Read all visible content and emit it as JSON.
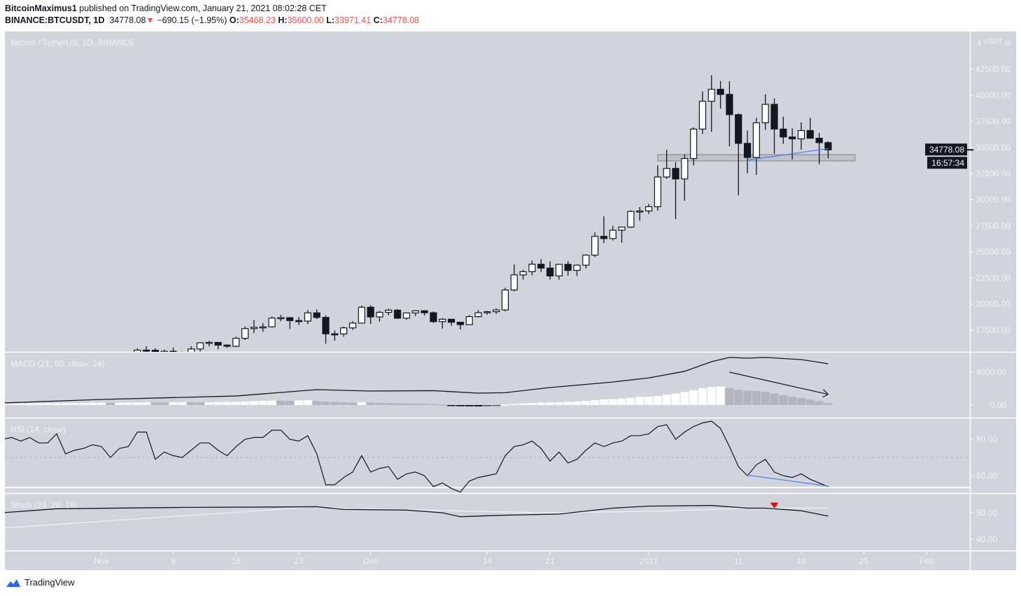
{
  "header": {
    "author": "BitcoinMaximus1",
    "published": "published on TradingView.com, January 21, 2021 08:02:28 CET",
    "symbol": "BINANCE:BTCUSDT, 1D",
    "last": "34778.08",
    "change": "−690.15 (−1.95%)",
    "o_label": "O:",
    "o": "35468.23",
    "h_label": "H:",
    "h": "35600.00",
    "l_label": "L:",
    "l": "33971.41",
    "c_label": "C:",
    "c": "34778.08",
    "down_icon": "triangle-down-icon"
  },
  "footer": {
    "brand": "TradingView"
  },
  "colors": {
    "pane_bg": "#d1d4dc",
    "up": "#ffffff",
    "down": "#131722",
    "accent_line": "#4a86e8",
    "signal_marker": "#ff0000",
    "loss_text": "#ef5350"
  },
  "chart_data": {
    "type": "candlestick",
    "title": "Bitcoin / TetherUS, 1D, BINANCE",
    "currency": "USDT",
    "axis_top": {
      "left": "4",
      "unit": "USDT",
      "right": "0"
    },
    "price_ticks": [
      "42500.00",
      "40000.00",
      "37500.00",
      "35000.00",
      "32500.00",
      "30000.00",
      "27500.00",
      "25000.00",
      "22500.00",
      "20000.00",
      "17500.00"
    ],
    "last_price_label": "34778.08",
    "countdown": "16:57:34",
    "time_labels": [
      {
        "label": "Nov",
        "date": "2020-11-01"
      },
      {
        "label": "9",
        "date": "2020-11-09"
      },
      {
        "label": "16",
        "date": "2020-11-16"
      },
      {
        "label": "23",
        "date": "2020-11-23"
      },
      {
        "label": "Dec",
        "date": "2020-12-01"
      },
      {
        "label": "14",
        "date": "2020-12-14"
      },
      {
        "label": "21",
        "date": "2020-12-21"
      },
      {
        "label": "2021",
        "date": "2021-01-01"
      },
      {
        "label": "11",
        "date": "2021-01-11"
      },
      {
        "label": "18",
        "date": "2021-01-18"
      },
      {
        "label": "25",
        "date": "2021-01-25"
      },
      {
        "label": "Feb",
        "date": "2021-02-01"
      }
    ],
    "ohlc_columns": [
      "date",
      "open",
      "high",
      "low",
      "close"
    ],
    "candles": [
      [
        "2020-11-05",
        14130,
        15750,
        14090,
        15590
      ],
      [
        "2020-11-06",
        15590,
        15960,
        15190,
        15580
      ],
      [
        "2020-11-07",
        15580,
        15770,
        14330,
        14830
      ],
      [
        "2020-11-08",
        14830,
        15650,
        14700,
        15480
      ],
      [
        "2020-11-09",
        15480,
        15840,
        14800,
        15330
      ],
      [
        "2020-11-10",
        15330,
        15460,
        14850,
        15310
      ],
      [
        "2020-11-11",
        15310,
        15960,
        15280,
        15700
      ],
      [
        "2020-11-12",
        15700,
        16340,
        15440,
        16290
      ],
      [
        "2020-11-13",
        16290,
        16480,
        15950,
        16330
      ],
      [
        "2020-11-14",
        16330,
        16330,
        15680,
        16070
      ],
      [
        "2020-11-15",
        16070,
        16150,
        15800,
        15960
      ],
      [
        "2020-11-16",
        15960,
        16880,
        15870,
        16720
      ],
      [
        "2020-11-17",
        16720,
        17860,
        16560,
        17650
      ],
      [
        "2020-11-18",
        17650,
        18480,
        17210,
        17780
      ],
      [
        "2020-11-19",
        17780,
        18180,
        17340,
        17820
      ],
      [
        "2020-11-20",
        17820,
        18820,
        17760,
        18660
      ],
      [
        "2020-11-21",
        18660,
        18960,
        18360,
        18700
      ],
      [
        "2020-11-22",
        18700,
        18750,
        17610,
        18420
      ],
      [
        "2020-11-23",
        18420,
        18770,
        18000,
        18370
      ],
      [
        "2020-11-24",
        18370,
        19420,
        18090,
        19160
      ],
      [
        "2020-11-25",
        19160,
        19480,
        18570,
        18720
      ],
      [
        "2020-11-26",
        18720,
        18915,
        16200,
        17150
      ],
      [
        "2020-11-27",
        17150,
        17460,
        16500,
        17140
      ],
      [
        "2020-11-28",
        17140,
        17850,
        16880,
        17720
      ],
      [
        "2020-11-29",
        17720,
        18350,
        17520,
        18180
      ],
      [
        "2020-11-30",
        18180,
        19860,
        18180,
        19700
      ],
      [
        "2020-12-01",
        19700,
        19890,
        18100,
        18770
      ],
      [
        "2020-12-02",
        18770,
        19340,
        18330,
        19210
      ],
      [
        "2020-12-03",
        19210,
        19570,
        18930,
        19420
      ],
      [
        "2020-12-04",
        19420,
        19530,
        18570,
        18650
      ],
      [
        "2020-12-05",
        18650,
        19180,
        18500,
        19150
      ],
      [
        "2020-12-06",
        19150,
        19420,
        18860,
        19360
      ],
      [
        "2020-12-07",
        19360,
        19420,
        18900,
        19170
      ],
      [
        "2020-12-08",
        19170,
        19300,
        18200,
        18320
      ],
      [
        "2020-12-09",
        18320,
        18640,
        17650,
        18550
      ],
      [
        "2020-12-10",
        18550,
        18560,
        17910,
        18260
      ],
      [
        "2020-12-11",
        18260,
        18270,
        17570,
        18030
      ],
      [
        "2020-12-12",
        18030,
        18950,
        18020,
        18800
      ],
      [
        "2020-12-13",
        18800,
        19410,
        18720,
        19170
      ],
      [
        "2020-12-14",
        19170,
        19350,
        19000,
        19270
      ],
      [
        "2020-12-15",
        19270,
        19570,
        19050,
        19440
      ],
      [
        "2020-12-16",
        19440,
        21560,
        19300,
        21350
      ],
      [
        "2020-12-17",
        21350,
        23800,
        21230,
        22800
      ],
      [
        "2020-12-18",
        22800,
        23280,
        22350,
        23110
      ],
      [
        "2020-12-19",
        23110,
        24170,
        22750,
        23820
      ],
      [
        "2020-12-20",
        23820,
        24300,
        23060,
        23450
      ],
      [
        "2020-12-21",
        23450,
        24100,
        22350,
        22700
      ],
      [
        "2020-12-22",
        22700,
        23840,
        22350,
        23810
      ],
      [
        "2020-12-23",
        23810,
        24120,
        22720,
        23230
      ],
      [
        "2020-12-24",
        23230,
        23780,
        22700,
        23730
      ],
      [
        "2020-12-25",
        23730,
        24780,
        23430,
        24690
      ],
      [
        "2020-12-26",
        24690,
        26870,
        24500,
        26490
      ],
      [
        "2020-12-27",
        26490,
        28420,
        25860,
        26280
      ],
      [
        "2020-12-28",
        26280,
        27500,
        26100,
        27080
      ],
      [
        "2020-12-29",
        27080,
        27400,
        25880,
        27380
      ],
      [
        "2020-12-30",
        27380,
        28990,
        27320,
        28880
      ],
      [
        "2020-12-31",
        28880,
        29300,
        28000,
        28920
      ],
      [
        "2021-01-01",
        28920,
        29600,
        28620,
        29330
      ],
      [
        "2021-01-02",
        29330,
        33300,
        28950,
        32180
      ],
      [
        "2021-01-03",
        32180,
        34780,
        32000,
        33000
      ],
      [
        "2021-01-04",
        33000,
        33600,
        28130,
        31990
      ],
      [
        "2021-01-05",
        31990,
        34360,
        29900,
        33950
      ],
      [
        "2021-01-06",
        33950,
        36940,
        33290,
        36770
      ],
      [
        "2021-01-07",
        36770,
        40370,
        36300,
        39430
      ],
      [
        "2021-01-08",
        39430,
        41950,
        36500,
        40580
      ],
      [
        "2021-01-09",
        40580,
        41380,
        38720,
        40090
      ],
      [
        "2021-01-10",
        40090,
        41350,
        35110,
        38150
      ],
      [
        "2021-01-11",
        38150,
        38260,
        30420,
        35400
      ],
      [
        "2021-01-12",
        35400,
        36630,
        32530,
        34050
      ],
      [
        "2021-01-13",
        34050,
        37850,
        32380,
        37370
      ],
      [
        "2021-01-14",
        37370,
        40100,
        36700,
        39140
      ],
      [
        "2021-01-15",
        39140,
        39700,
        34410,
        36770
      ],
      [
        "2021-01-16",
        36770,
        37950,
        35360,
        36010
      ],
      [
        "2021-01-17",
        36010,
        36850,
        33850,
        35830
      ],
      [
        "2021-01-18",
        35830,
        37400,
        34800,
        36630
      ],
      [
        "2021-01-19",
        36630,
        37850,
        35850,
        35890
      ],
      [
        "2021-01-20",
        35890,
        36400,
        33400,
        35470
      ],
      [
        "2021-01-21",
        35468.23,
        35600,
        33971.41,
        34778.08
      ]
    ],
    "annotations": {
      "support_zone": {
        "from": "2021-01-02",
        "to": "2021-01-24",
        "top": 34320,
        "bottom": 33720
      },
      "price_trendline": [
        [
          "2021-01-12",
          33800
        ],
        [
          "2021-01-21",
          34900
        ]
      ],
      "macd_arrow": [
        [
          "2021-01-10",
          4000
        ],
        [
          "2021-01-21",
          1300
        ]
      ],
      "rsi_trendline": [
        [
          "2021-01-12",
          60.3
        ],
        [
          "2021-01-21",
          54.3
        ]
      ],
      "stoch_signal": {
        "date": "2021-01-15",
        "value": 91
      }
    },
    "macd": {
      "title": "MACD (21, 50, close, 24)",
      "ticks": [
        "4000.00",
        "0.00"
      ],
      "line": [
        [
          "2020-10-21",
          250
        ],
        [
          "2020-11-01",
          680
        ],
        [
          "2020-11-16",
          1100
        ],
        [
          "2020-11-25",
          1870
        ],
        [
          "2020-12-01",
          1700
        ],
        [
          "2020-12-08",
          1750
        ],
        [
          "2020-12-13",
          1450
        ],
        [
          "2020-12-16",
          1500
        ],
        [
          "2020-12-21",
          2130
        ],
        [
          "2020-12-28",
          2800
        ],
        [
          "2021-01-01",
          3300
        ],
        [
          "2021-01-05",
          4100
        ],
        [
          "2021-01-08",
          5280
        ],
        [
          "2021-01-10",
          5790
        ],
        [
          "2021-01-12",
          5700
        ],
        [
          "2021-01-14",
          5790
        ],
        [
          "2021-01-18",
          5530
        ],
        [
          "2021-01-21",
          5020
        ]
      ]
    },
    "rsi": {
      "title": "RSI (14, close)",
      "ticks": [
        "80.00",
        "60.00"
      ],
      "midline": 70,
      "lower_band": 53.5
    },
    "stoch": {
      "title": "Stoch (24, 28, 16)",
      "ticks": [
        "80.00",
        "40.00"
      ],
      "k": [
        [
          "2020-10-21",
          80
        ],
        [
          "2020-10-27",
          86
        ],
        [
          "2020-11-10",
          88
        ],
        [
          "2020-11-25",
          89
        ],
        [
          "2020-11-28",
          85
        ],
        [
          "2020-12-05",
          84
        ],
        [
          "2020-12-09",
          80
        ],
        [
          "2020-12-11",
          74
        ],
        [
          "2020-12-15",
          76
        ],
        [
          "2020-12-22",
          78
        ],
        [
          "2020-12-28",
          87
        ],
        [
          "2021-01-01",
          90
        ],
        [
          "2021-01-08",
          91
        ],
        [
          "2021-01-12",
          87
        ],
        [
          "2021-01-14",
          87
        ],
        [
          "2021-01-18",
          83
        ],
        [
          "2021-01-21",
          75
        ]
      ],
      "d": [
        [
          "2020-10-21",
          57
        ],
        [
          "2020-11-24",
          88
        ],
        [
          "2020-12-20",
          80
        ],
        [
          "2021-01-01",
          82
        ],
        [
          "2021-01-08",
          85
        ],
        [
          "2021-01-12",
          87
        ],
        [
          "2021-01-21",
          87
        ]
      ]
    },
    "daily_columns": [
      "date",
      "rsi",
      "macd_histogram"
    ],
    "daily": [
      [
        "2020-10-21",
        80,
        150
      ],
      [
        "2020-10-22",
        81,
        170
      ],
      [
        "2020-10-23",
        79,
        190
      ],
      [
        "2020-10-24",
        81,
        200
      ],
      [
        "2020-10-25",
        78,
        210
      ],
      [
        "2020-10-26",
        78,
        220
      ],
      [
        "2020-10-27",
        83,
        230
      ],
      [
        "2020-10-28",
        72,
        240
      ],
      [
        "2020-10-29",
        74,
        250
      ],
      [
        "2020-10-30",
        75,
        260
      ],
      [
        "2020-10-31",
        77,
        270
      ],
      [
        "2020-11-01",
        76,
        280
      ],
      [
        "2020-11-02",
        70,
        270
      ],
      [
        "2020-11-03",
        75,
        280
      ],
      [
        "2020-11-04",
        76,
        300
      ],
      [
        "2020-11-05",
        84,
        320
      ],
      [
        "2020-11-06",
        84,
        340
      ],
      [
        "2020-11-07",
        69,
        330
      ],
      [
        "2020-11-08",
        73,
        310
      ],
      [
        "2020-11-09",
        71,
        330
      ],
      [
        "2020-11-10",
        70,
        350
      ],
      [
        "2020-11-11",
        74,
        340
      ],
      [
        "2020-11-12",
        78,
        320
      ],
      [
        "2020-11-13",
        78,
        340
      ],
      [
        "2020-11-14",
        74,
        360
      ],
      [
        "2020-11-15",
        71,
        380
      ],
      [
        "2020-11-16",
        76,
        400
      ],
      [
        "2020-11-17",
        80,
        430
      ],
      [
        "2020-11-18",
        81,
        460
      ],
      [
        "2020-11-19",
        81,
        500
      ],
      [
        "2020-11-20",
        85,
        560
      ],
      [
        "2020-11-21",
        85,
        520
      ],
      [
        "2020-11-22",
        80,
        500
      ],
      [
        "2020-11-23",
        79,
        560
      ],
      [
        "2020-11-24",
        82,
        600
      ],
      [
        "2020-11-25",
        72,
        470
      ],
      [
        "2020-11-26",
        55,
        420
      ],
      [
        "2020-11-27",
        55,
        380
      ],
      [
        "2020-11-28",
        59,
        330
      ],
      [
        "2020-11-29",
        62,
        290
      ],
      [
        "2020-11-30",
        71,
        330
      ],
      [
        "2020-12-01",
        62,
        300
      ],
      [
        "2020-12-02",
        64,
        270
      ],
      [
        "2020-12-03",
        65,
        250
      ],
      [
        "2020-12-04",
        58,
        230
      ],
      [
        "2020-12-05",
        61,
        210
      ],
      [
        "2020-12-06",
        62,
        190
      ],
      [
        "2020-12-07",
        60,
        160
      ],
      [
        "2020-12-08",
        54,
        120
      ],
      [
        "2020-12-09",
        56,
        60
      ],
      [
        "2020-12-10",
        53,
        -80
      ],
      [
        "2020-12-11",
        51,
        -150
      ],
      [
        "2020-12-12",
        57,
        -160
      ],
      [
        "2020-12-13",
        59,
        -170
      ],
      [
        "2020-12-14",
        60,
        -150
      ],
      [
        "2020-12-15",
        61,
        -80
      ],
      [
        "2020-12-16",
        71,
        60
      ],
      [
        "2020-12-17",
        76,
        130
      ],
      [
        "2020-12-18",
        77,
        190
      ],
      [
        "2020-12-19",
        79,
        250
      ],
      [
        "2020-12-20",
        75,
        300
      ],
      [
        "2020-12-21",
        68,
        320
      ],
      [
        "2020-12-22",
        73,
        340
      ],
      [
        "2020-12-23",
        67,
        380
      ],
      [
        "2020-12-24",
        69,
        420
      ],
      [
        "2020-12-25",
        74,
        500
      ],
      [
        "2020-12-26",
        78,
        600
      ],
      [
        "2020-12-27",
        76,
        680
      ],
      [
        "2020-12-28",
        78,
        720
      ],
      [
        "2020-12-29",
        79,
        780
      ],
      [
        "2020-12-30",
        82,
        870
      ],
      [
        "2020-12-31",
        82,
        990
      ],
      [
        "2021-01-01",
        83,
        1000
      ],
      [
        "2021-01-02",
        87,
        1100
      ],
      [
        "2021-01-03",
        88,
        1250
      ],
      [
        "2021-01-04",
        80,
        1400
      ],
      [
        "2021-01-05",
        84,
        1580
      ],
      [
        "2021-01-06",
        87,
        1800
      ],
      [
        "2021-01-07",
        89,
        2050
      ],
      [
        "2021-01-08",
        90,
        2200
      ],
      [
        "2021-01-09",
        86,
        2250
      ],
      [
        "2021-01-10",
        76,
        2050
      ],
      [
        "2021-01-11",
        65,
        1850
      ],
      [
        "2021-01-12",
        60,
        1750
      ],
      [
        "2021-01-13",
        66,
        1700
      ],
      [
        "2021-01-14",
        69,
        1600
      ],
      [
        "2021-01-15",
        62,
        1400
      ],
      [
        "2021-01-16",
        60,
        1200
      ],
      [
        "2021-01-17",
        59,
        1000
      ],
      [
        "2021-01-18",
        61,
        850
      ],
      [
        "2021-01-19",
        58,
        650
      ],
      [
        "2021-01-20",
        56,
        450
      ],
      [
        "2021-01-21",
        54,
        250
      ]
    ]
  }
}
